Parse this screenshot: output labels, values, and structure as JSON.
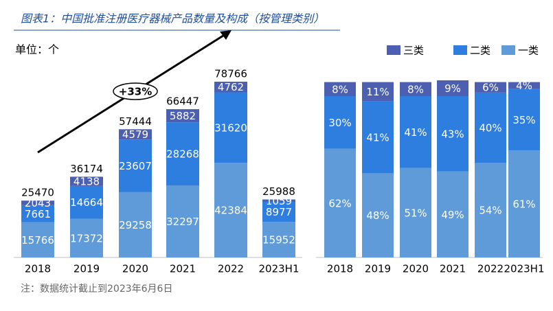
{
  "title": "图表1：中国批准注册医疗器械产品数量及构成（按管理类别）",
  "unit": "单位：个",
  "note": "注：数据统计截止到2023年6月6日",
  "chart_data": [
    {
      "type": "bar",
      "stacked": true,
      "categories": [
        "2018",
        "2019",
        "2020",
        "2021",
        "2022",
        "2023H1"
      ],
      "series": [
        {
          "name": "一类",
          "color": "#5e9bd8",
          "values": [
            15766,
            17372,
            29258,
            32297,
            42384,
            15952
          ]
        },
        {
          "name": "二类",
          "color": "#2e7ee0",
          "values": [
            7661,
            14664,
            23607,
            28268,
            31620,
            8977
          ]
        },
        {
          "name": "三类",
          "color": "#4c5fb1",
          "values": [
            2043,
            4138,
            4579,
            5882,
            4762,
            1059
          ]
        }
      ],
      "totals": [
        25470,
        36174,
        57444,
        66447,
        78766,
        25988
      ],
      "annotation": "+33%"
    },
    {
      "type": "bar",
      "stacked": true,
      "categories": [
        "2018",
        "2019",
        "2020",
        "2021",
        "2022",
        "2023H1"
      ],
      "series": [
        {
          "name": "一类",
          "color": "#5e9bd8",
          "values": [
            62,
            48,
            51,
            49,
            54,
            61
          ],
          "value_labels": [
            "62%",
            "48%",
            "51%",
            "49%",
            "54%",
            "61%"
          ]
        },
        {
          "name": "二类",
          "color": "#2e7ee0",
          "values": [
            30,
            41,
            41,
            43,
            40,
            35
          ],
          "value_labels": [
            "30%",
            "41%",
            "41%",
            "43%",
            "40%",
            "35%"
          ]
        },
        {
          "name": "三类",
          "color": "#4c5fb1",
          "values": [
            8,
            11,
            8,
            9,
            6,
            4
          ],
          "value_labels": [
            "8%",
            "11%",
            "8%",
            "9%",
            "6%",
            "4%"
          ]
        }
      ]
    }
  ]
}
